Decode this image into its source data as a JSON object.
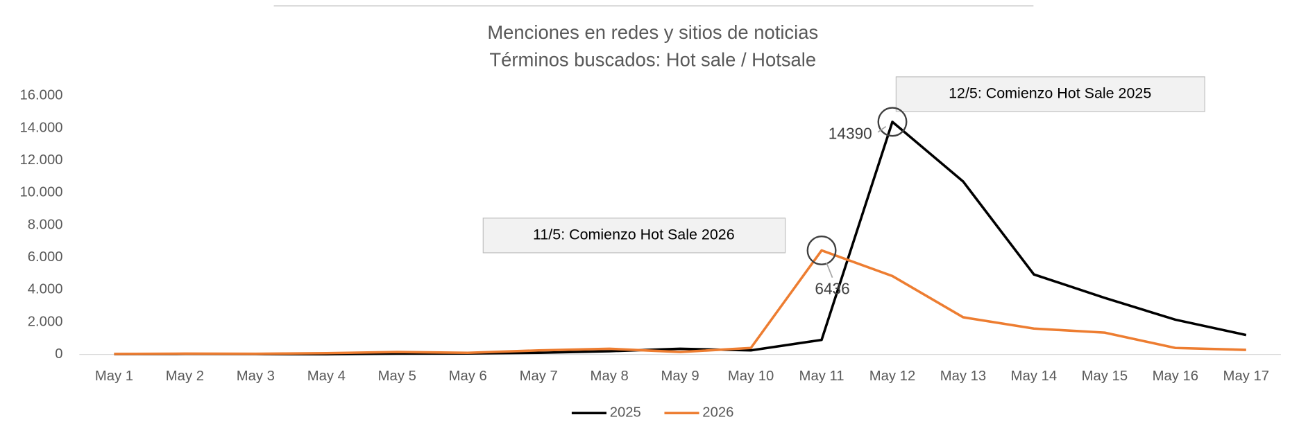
{
  "chart_data": {
    "type": "line",
    "title": "Menciones en redes y sitios de noticias",
    "subtitle": "Términos buscados: Hot sale / Hotsale",
    "categories": [
      "May 1",
      "May 2",
      "May 3",
      "May 4",
      "May 5",
      "May 6",
      "May 7",
      "May 8",
      "May 9",
      "May 10",
      "May 11",
      "May 12",
      "May 13",
      "May 14",
      "May 15",
      "May 16",
      "May 17"
    ],
    "series": [
      {
        "name": "2025",
        "color": "#000000",
        "values": [
          20,
          30,
          20,
          10,
          50,
          60,
          100,
          200,
          350,
          250,
          900,
          14390,
          10700,
          4950,
          3500,
          2150,
          1200
        ]
      },
      {
        "name": "2026",
        "color": "#ed7d31",
        "values": [
          30,
          50,
          40,
          80,
          150,
          100,
          250,
          350,
          150,
          400,
          6436,
          4850,
          2300,
          1600,
          1350,
          400,
          280
        ]
      }
    ],
    "ylim": [
      0,
      16000
    ],
    "yticks": [
      0,
      {
        "value": 2000,
        "label": "2.000"
      },
      {
        "value": 4000,
        "label": "4.000"
      },
      {
        "value": 6000,
        "label": "6.000"
      },
      {
        "value": 8000,
        "label": "8.000"
      },
      {
        "value": 10000,
        "label": "10.000"
      },
      {
        "value": 12000,
        "label": "12.000"
      },
      {
        "value": 14000,
        "label": "14.000"
      },
      {
        "value": 16000,
        "label": "16.000"
      }
    ],
    "annotations": [
      "12/5: Comienzo Hot Sale 2025",
      "11/5: Comienzo Hot Sale 2026"
    ],
    "legend": "bottom"
  }
}
